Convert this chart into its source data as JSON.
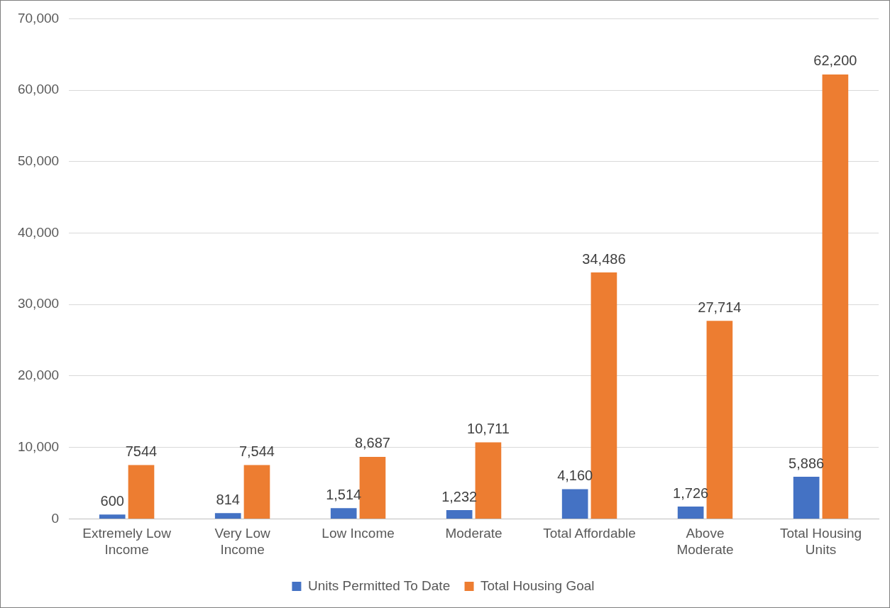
{
  "chart_data": {
    "type": "bar",
    "categories": [
      "Extremely Low Income",
      "Very Low Income",
      "Low Income",
      "Moderate",
      "Total Affordable",
      "Above Moderate",
      "Total Housing Units"
    ],
    "series": [
      {
        "name": "Units Permitted To Date",
        "color": "#4472c4",
        "values": [
          600,
          814,
          1514,
          1232,
          4160,
          1726,
          5886
        ],
        "value_labels": [
          "600",
          "814",
          "1,514",
          "1,232",
          "4,160",
          "1,726",
          "5,886"
        ]
      },
      {
        "name": "Total Housing Goal",
        "color": "#ed7d31",
        "values": [
          7544,
          7544,
          8687,
          10711,
          34486,
          27714,
          62200
        ],
        "value_labels": [
          "7544",
          "7,544",
          "8,687",
          "10,711",
          "34,486",
          "27,714",
          "62,200"
        ]
      }
    ],
    "ylim": [
      0,
      70000
    ],
    "yticks": [
      {
        "value": 0,
        "label": "0"
      },
      {
        "value": 10000,
        "label": "10,000"
      },
      {
        "value": 20000,
        "label": "20,000"
      },
      {
        "value": 30000,
        "label": "30,000"
      },
      {
        "value": 40000,
        "label": "40,000"
      },
      {
        "value": 50000,
        "label": "50,000"
      },
      {
        "value": 60000,
        "label": "60,000"
      },
      {
        "value": 70000,
        "label": "70,000"
      }
    ],
    "grid": "y",
    "legend": "bottom"
  }
}
